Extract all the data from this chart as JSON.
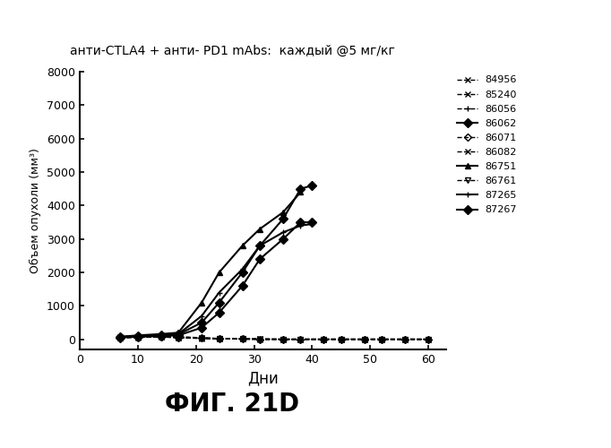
{
  "title_parts": {
    "normal": "анти-CTLA4 + анти- PD1 mAbs:  каждый @5 мг/кг"
  },
  "xlabel": "Дни",
  "ylabel": "Объем опухоли (мм³)",
  "caption": "ФИГ. 21D",
  "xlim": [
    0,
    63
  ],
  "ylim": [
    -300,
    8000
  ],
  "yticks": [
    0,
    1000,
    2000,
    3000,
    4000,
    5000,
    6000,
    7000,
    8000
  ],
  "xticks": [
    0,
    10,
    20,
    30,
    40,
    50,
    60
  ],
  "series": {
    "84956": {
      "x": [
        7,
        10,
        14,
        17,
        21,
        24,
        28,
        31,
        35,
        38,
        42,
        45,
        49,
        52,
        56,
        60
      ],
      "y": [
        50,
        60,
        70,
        50,
        30,
        20,
        10,
        5,
        5,
        5,
        5,
        5,
        5,
        5,
        5,
        5
      ],
      "marker": "x",
      "linestyle": "--"
    },
    "85240": {
      "x": [
        7,
        10,
        14,
        17,
        21,
        24,
        28,
        31,
        35,
        38,
        42,
        45,
        49,
        52,
        56,
        60
      ],
      "y": [
        60,
        80,
        80,
        60,
        40,
        25,
        15,
        10,
        5,
        5,
        5,
        5,
        5,
        5,
        5,
        5
      ],
      "marker": "x",
      "linestyle": "--"
    },
    "86056": {
      "x": [
        7,
        10,
        14,
        17,
        21,
        24,
        28,
        31,
        35,
        38,
        42,
        45,
        49,
        52,
        56,
        60
      ],
      "y": [
        70,
        90,
        100,
        80,
        50,
        30,
        20,
        10,
        5,
        5,
        5,
        5,
        5,
        5,
        5,
        5
      ],
      "marker": "+",
      "linestyle": "--"
    },
    "86062": {
      "x": [
        7,
        10,
        14,
        17,
        21,
        24,
        28,
        31,
        35,
        38,
        40
      ],
      "y": [
        60,
        80,
        100,
        120,
        350,
        800,
        1600,
        2400,
        3000,
        3500,
        3500
      ],
      "marker": "D",
      "linestyle": "-"
    },
    "86071": {
      "x": [
        7,
        10,
        14,
        17,
        21,
        24,
        28,
        31,
        35,
        38,
        42,
        45,
        49,
        52,
        56,
        60
      ],
      "y": [
        55,
        70,
        80,
        60,
        35,
        20,
        10,
        5,
        5,
        5,
        5,
        5,
        5,
        5,
        5,
        5
      ],
      "marker": "D",
      "linestyle": "--"
    },
    "86082": {
      "x": [
        7,
        10,
        14,
        17,
        21,
        24,
        28,
        31,
        35,
        38,
        42,
        45,
        49,
        52,
        56,
        60
      ],
      "y": [
        65,
        85,
        90,
        70,
        45,
        25,
        15,
        10,
        5,
        5,
        5,
        5,
        5,
        5,
        5,
        5
      ],
      "marker": "x",
      "linestyle": "--"
    },
    "86751": {
      "x": [
        7,
        10,
        14,
        17,
        21,
        24,
        28,
        31,
        35,
        38
      ],
      "y": [
        80,
        120,
        160,
        200,
        1100,
        2000,
        2800,
        3300,
        3800,
        4400
      ],
      "marker": "^",
      "linestyle": "-"
    },
    "86761": {
      "x": [
        7,
        10,
        14,
        17,
        21,
        24,
        28,
        31,
        35,
        38,
        42,
        45,
        49,
        52,
        56,
        60
      ],
      "y": [
        50,
        65,
        75,
        55,
        30,
        15,
        10,
        5,
        5,
        5,
        5,
        5,
        5,
        5,
        5,
        5
      ],
      "marker": "v",
      "linestyle": "--"
    },
    "87265": {
      "x": [
        7,
        10,
        14,
        17,
        21,
        24,
        28,
        31,
        35,
        38,
        40
      ],
      "y": [
        70,
        100,
        130,
        160,
        700,
        1400,
        2100,
        2800,
        3200,
        3400,
        3450
      ],
      "marker": "+",
      "linestyle": "-"
    },
    "87267": {
      "x": [
        7,
        10,
        14,
        17,
        21,
        24,
        28,
        31,
        35,
        38,
        40
      ],
      "y": [
        70,
        100,
        120,
        150,
        500,
        1100,
        2000,
        2800,
        3600,
        4500,
        4600
      ],
      "marker": "D",
      "linestyle": "-"
    }
  },
  "markers": {
    "84956": "x",
    "85240": "x",
    "86056": "+",
    "86062": "D",
    "86071": "D",
    "86082": "x",
    "86751": "^",
    "86761": "v",
    "87265": "+",
    "87267": "D"
  },
  "linestyles": {
    "84956": "--",
    "85240": "--",
    "86056": "--",
    "86062": "-",
    "86071": "--",
    "86082": "--",
    "86751": "-",
    "86761": "--",
    "87265": "-",
    "87267": "-"
  }
}
